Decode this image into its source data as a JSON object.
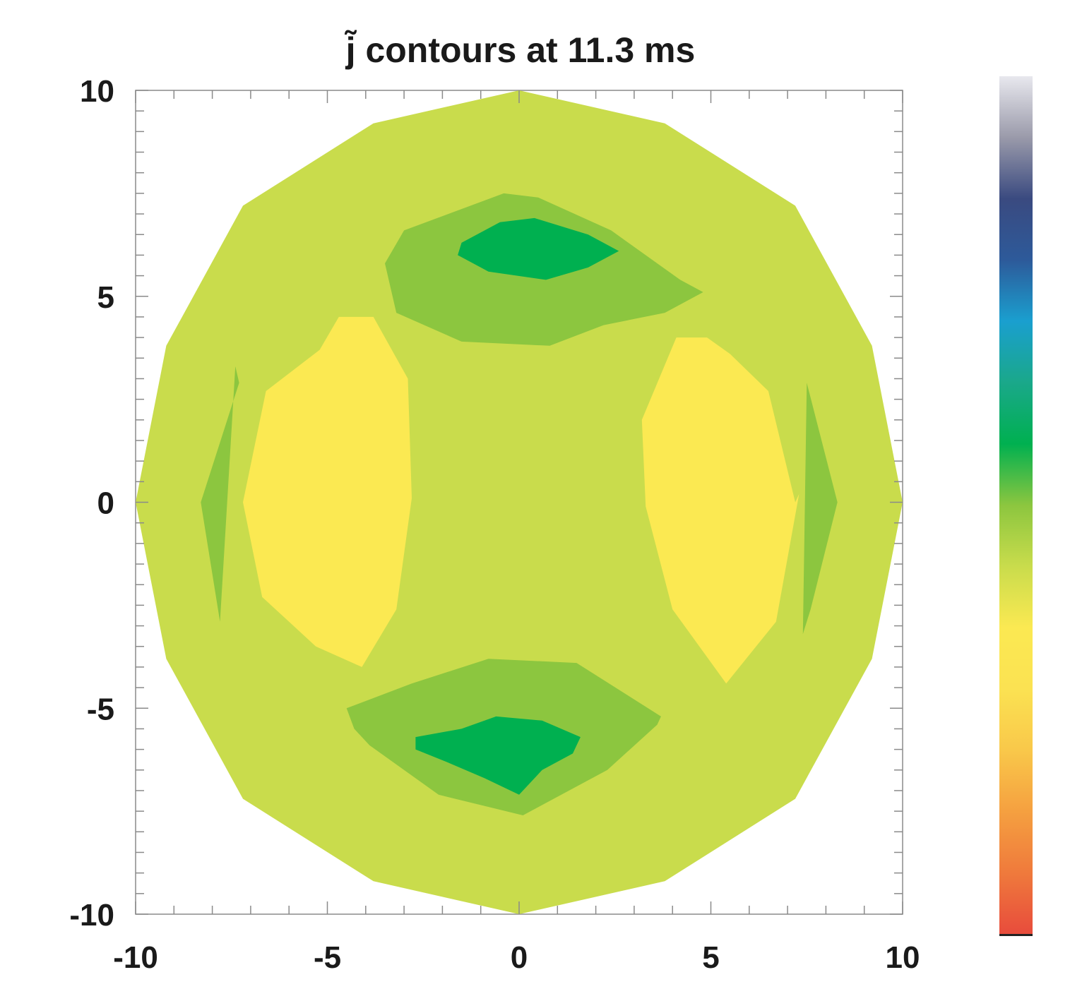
{
  "chart_data": {
    "type": "heatmap",
    "subtype": "filled-contour",
    "title": "j̃ contours at 11.3 ms",
    "xlabel": "",
    "ylabel": "",
    "xlim": [
      -10,
      10
    ],
    "ylim": [
      -10,
      10
    ],
    "x_ticks": [
      -10,
      -5,
      0,
      5,
      10
    ],
    "y_ticks": [
      10,
      5,
      0,
      -5,
      -10
    ],
    "x_tick_labels": [
      "-10",
      "-5",
      "0",
      "5",
      "10"
    ],
    "y_tick_labels": [
      "10",
      "5",
      "0",
      "-5",
      "-10"
    ],
    "grid": false,
    "colorbar": {
      "position": "right",
      "tick_labels": [],
      "colors": [
        "#e84c3c",
        "#ef7a3c",
        "#f5a040",
        "#f9c84a",
        "#fbe252",
        "#fbe952",
        "#c9dc4c",
        "#8cc63f",
        "#00b050",
        "#1aa88a",
        "#1a9fcf",
        "#2d5a9a",
        "#3a4a80",
        "#9a9aaa",
        "#e8e8ee"
      ]
    },
    "levels": {
      "background": "#c9dc4c",
      "yellow_high": "#fbe952",
      "light_green": "#8cc63f",
      "dark_green": "#00b050"
    },
    "regions": [
      {
        "name": "domain",
        "level": "background",
        "x": [
          0,
          3.8,
          7.2,
          9.2,
          10,
          9.2,
          7.2,
          3.8,
          0,
          -3.8,
          -7.2,
          -9.2,
          -10,
          -9.2,
          -7.2,
          -3.8
        ],
        "y": [
          10,
          9.2,
          7.2,
          3.8,
          0,
          -3.8,
          -7.2,
          -9.2,
          -10,
          -9.2,
          -7.2,
          -3.8,
          0,
          3.8,
          7.2,
          9.2
        ]
      },
      {
        "name": "top-outer-lobe",
        "level": "light_green",
        "x": [
          -3,
          -0.4,
          0.5,
          2.4,
          4.2,
          4.8,
          3.8,
          2.2,
          0.8,
          -1.5,
          -3.2,
          -3.5
        ],
        "y": [
          6.6,
          7.5,
          7.4,
          6.6,
          5.4,
          5.1,
          4.6,
          4.3,
          3.8,
          3.9,
          4.6,
          5.8
        ]
      },
      {
        "name": "top-inner-lobe",
        "level": "dark_green",
        "x": [
          -1.5,
          -0.5,
          0.4,
          1.8,
          2.6,
          1.8,
          0.7,
          -0.8,
          -1.6
        ],
        "y": [
          6.3,
          6.8,
          6.9,
          6.5,
          6.1,
          5.7,
          5.4,
          5.6,
          6.0
        ]
      },
      {
        "name": "bottom-outer-lobe",
        "level": "light_green",
        "x": [
          -4.5,
          -2.8,
          -0.8,
          1.5,
          3.7,
          3.6,
          2.3,
          0.1,
          -2.1,
          -3.9,
          -4.3
        ],
        "y": [
          -5.0,
          -4.4,
          -3.8,
          -3.9,
          -5.2,
          -5.4,
          -6.5,
          -7.6,
          -7.1,
          -5.9,
          -5.5
        ]
      },
      {
        "name": "bottom-inner-lobe",
        "level": "dark_green",
        "x": [
          -2.7,
          -1.5,
          -0.6,
          0.6,
          1.6,
          1.4,
          0.6,
          0.0,
          -0.9,
          -1.9,
          -2.7
        ],
        "y": [
          -5.7,
          -5.5,
          -5.2,
          -5.3,
          -5.7,
          -6.1,
          -6.5,
          -7.1,
          -6.7,
          -6.3,
          -6.0
        ]
      },
      {
        "name": "left-high-region",
        "level": "yellow_high",
        "x": [
          -6.6,
          -5.2,
          -4.7,
          -3.8,
          -2.9,
          -2.8,
          -3.2,
          -4.1,
          -5.3,
          -6.7,
          -7.2
        ],
        "y": [
          2.7,
          3.7,
          4.5,
          4.5,
          3.0,
          0.1,
          -2.6,
          -4.0,
          -3.5,
          -2.3,
          0.0
        ]
      },
      {
        "name": "right-high-region",
        "level": "yellow_high",
        "x": [
          6.5,
          5.5,
          4.9,
          4.1,
          3.2,
          3.3,
          4.0,
          5.4,
          6.7,
          7.3,
          7.2
        ],
        "y": [
          2.7,
          3.6,
          4.0,
          4.0,
          2.0,
          -0.1,
          -2.6,
          -4.4,
          -2.9,
          0.2,
          0.0
        ]
      },
      {
        "name": "left-edge-sliver",
        "level": "light_green",
        "x": [
          -7.4,
          -7.3,
          -8.3,
          -7.8
        ],
        "y": [
          3.3,
          2.9,
          0.0,
          -2.9
        ]
      },
      {
        "name": "right-edge-sliver",
        "level": "light_green",
        "x": [
          7.5,
          8.3,
          7.6,
          7.4
        ],
        "y": [
          2.9,
          0.0,
          -2.6,
          -3.2
        ]
      }
    ]
  }
}
